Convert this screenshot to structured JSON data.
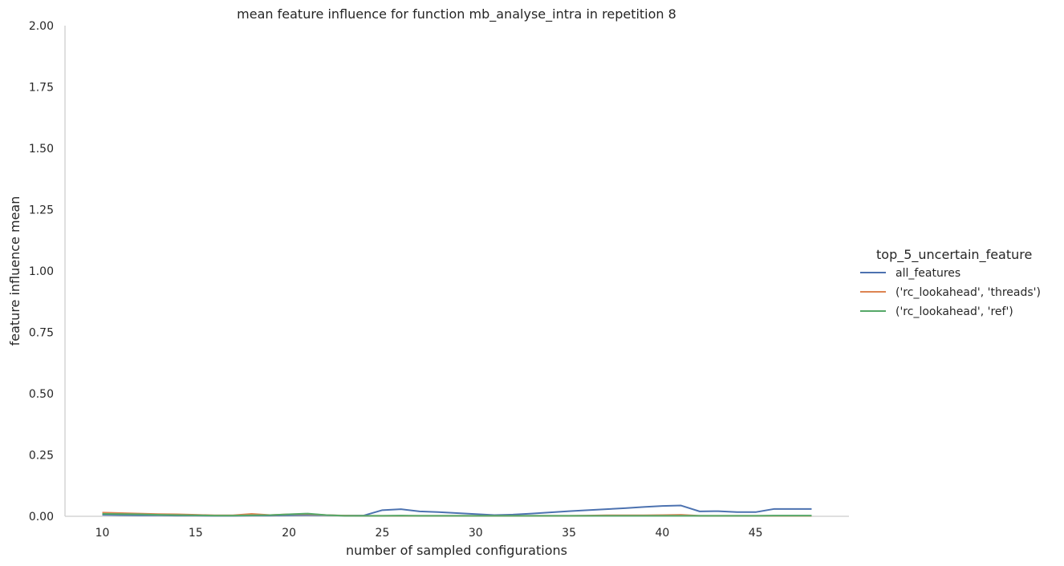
{
  "chart_data": {
    "type": "line",
    "title": "mean feature influence for function mb_analyse_intra in repetition 8",
    "xlabel": "number of sampled configurations",
    "ylabel": "feature influence mean",
    "xlim": [
      8,
      50
    ],
    "ylim": [
      0,
      2
    ],
    "xticks": [
      10,
      15,
      20,
      25,
      30,
      35,
      40,
      45
    ],
    "yticks": [
      0.0,
      0.25,
      0.5,
      0.75,
      1.0,
      1.25,
      1.5,
      1.75,
      2.0
    ],
    "ytick_labels": [
      "0.00",
      "0.25",
      "0.50",
      "0.75",
      "1.00",
      "1.25",
      "1.50",
      "1.75",
      "2.00"
    ],
    "grid": false,
    "legend": {
      "title": "top_5_uncertain_feature",
      "placement": "right"
    },
    "series": [
      {
        "name": "all_features",
        "color": "#4c72b0",
        "x": [
          10,
          11,
          12,
          13,
          14,
          15,
          16,
          17,
          18,
          19,
          20,
          21,
          22,
          23,
          24,
          25,
          26,
          27,
          28,
          29,
          30,
          31,
          32,
          33,
          34,
          35,
          36,
          37,
          38,
          39,
          40,
          41,
          42,
          43,
          44,
          45,
          46,
          47,
          48
        ],
        "values": [
          0.006,
          0.005,
          0.004,
          0.004,
          0.003,
          0.003,
          0.002,
          0.002,
          0.003,
          0.003,
          0.004,
          0.005,
          0.004,
          0.003,
          0.003,
          0.025,
          0.029,
          0.02,
          0.017,
          0.013,
          0.009,
          0.005,
          0.007,
          0.011,
          0.016,
          0.021,
          0.025,
          0.029,
          0.033,
          0.038,
          0.042,
          0.044,
          0.02,
          0.021,
          0.017,
          0.017,
          0.03,
          0.03,
          0.03
        ]
      },
      {
        "name": "('rc_lookahead', 'threads')",
        "color": "#dd8452",
        "x": [
          10,
          11,
          12,
          13,
          14,
          15,
          16,
          17,
          18,
          19,
          20,
          21,
          22,
          23,
          24,
          25,
          26,
          27,
          28,
          29,
          30,
          31,
          32,
          33,
          34,
          35,
          36,
          37,
          38,
          39,
          40,
          41,
          42,
          43,
          44,
          45,
          46,
          47,
          48
        ],
        "values": [
          0.015,
          0.013,
          0.011,
          0.009,
          0.008,
          0.006,
          0.004,
          0.004,
          0.01,
          0.005,
          0.008,
          0.009,
          0.005,
          0.003,
          0.002,
          0.002,
          0.002,
          0.002,
          0.002,
          0.002,
          0.002,
          0.002,
          0.002,
          0.002,
          0.002,
          0.002,
          0.003,
          0.004,
          0.004,
          0.004,
          0.005,
          0.006,
          0.002,
          0.002,
          0.002,
          0.002,
          0.002,
          0.002,
          0.002
        ]
      },
      {
        "name": "('rc_lookahead', 'ref')",
        "color": "#55a868",
        "x": [
          10,
          11,
          12,
          13,
          14,
          15,
          16,
          17,
          18,
          19,
          20,
          21,
          22,
          23,
          24,
          25,
          26,
          27,
          28,
          29,
          30,
          31,
          32,
          33,
          34,
          35,
          36,
          37,
          38,
          39,
          40,
          41,
          42,
          43,
          44,
          45,
          46,
          47,
          48
        ],
        "values": [
          0.01,
          0.009,
          0.008,
          0.006,
          0.005,
          0.004,
          0.003,
          0.003,
          0.004,
          0.005,
          0.008,
          0.011,
          0.005,
          0.002,
          0.002,
          0.002,
          0.003,
          0.002,
          0.002,
          0.002,
          0.002,
          0.002,
          0.002,
          0.002,
          0.002,
          0.002,
          0.002,
          0.002,
          0.002,
          0.002,
          0.002,
          0.002,
          0.002,
          0.002,
          0.002,
          0.002,
          0.003,
          0.003,
          0.003
        ]
      }
    ]
  }
}
